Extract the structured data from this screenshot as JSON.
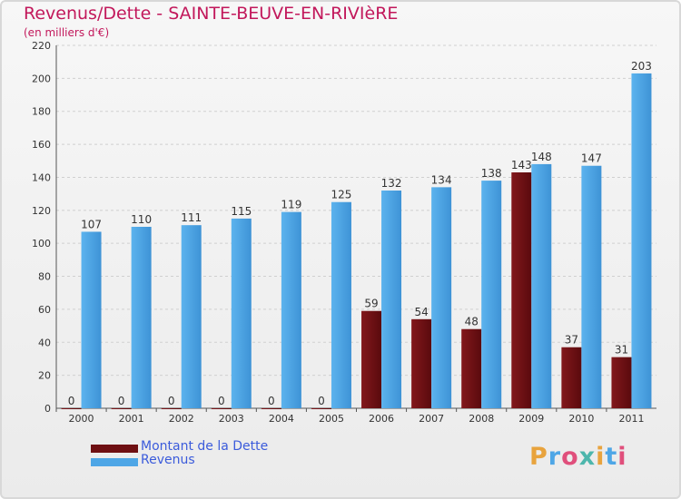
{
  "chart_data": {
    "type": "bar",
    "title": "Revenus/Dette - SAINTE-BEUVE-EN-RIVIèRE",
    "subtitle": "(en milliers d'€)",
    "categories": [
      "2000",
      "2001",
      "2002",
      "2003",
      "2004",
      "2005",
      "2006",
      "2007",
      "2008",
      "2009",
      "2010",
      "2011"
    ],
    "series": [
      {
        "name": "Montant de la Dette",
        "color": "#6e0f12",
        "values": [
          0,
          0,
          0,
          0,
          0,
          0,
          59,
          54,
          48,
          143,
          37,
          31
        ]
      },
      {
        "name": "Revenus",
        "color": "#4ea6e6",
        "values": [
          107,
          110,
          111,
          115,
          119,
          125,
          132,
          134,
          138,
          148,
          147,
          203
        ]
      }
    ],
    "y_ticks": [
      0,
      20,
      40,
      60,
      80,
      100,
      120,
      140,
      160,
      180,
      200,
      220
    ],
    "ylim": [
      0,
      220
    ],
    "grid": true,
    "legend": "bottom-left"
  },
  "logo": {
    "letters": [
      "P",
      "r",
      "o",
      "x",
      "i",
      "t",
      "i"
    ],
    "colors": [
      "#e8a33d",
      "#4ea6e6",
      "#e04f7c",
      "#4db6ac",
      "#e8a33d",
      "#4ea6e6",
      "#e04f7c"
    ]
  }
}
